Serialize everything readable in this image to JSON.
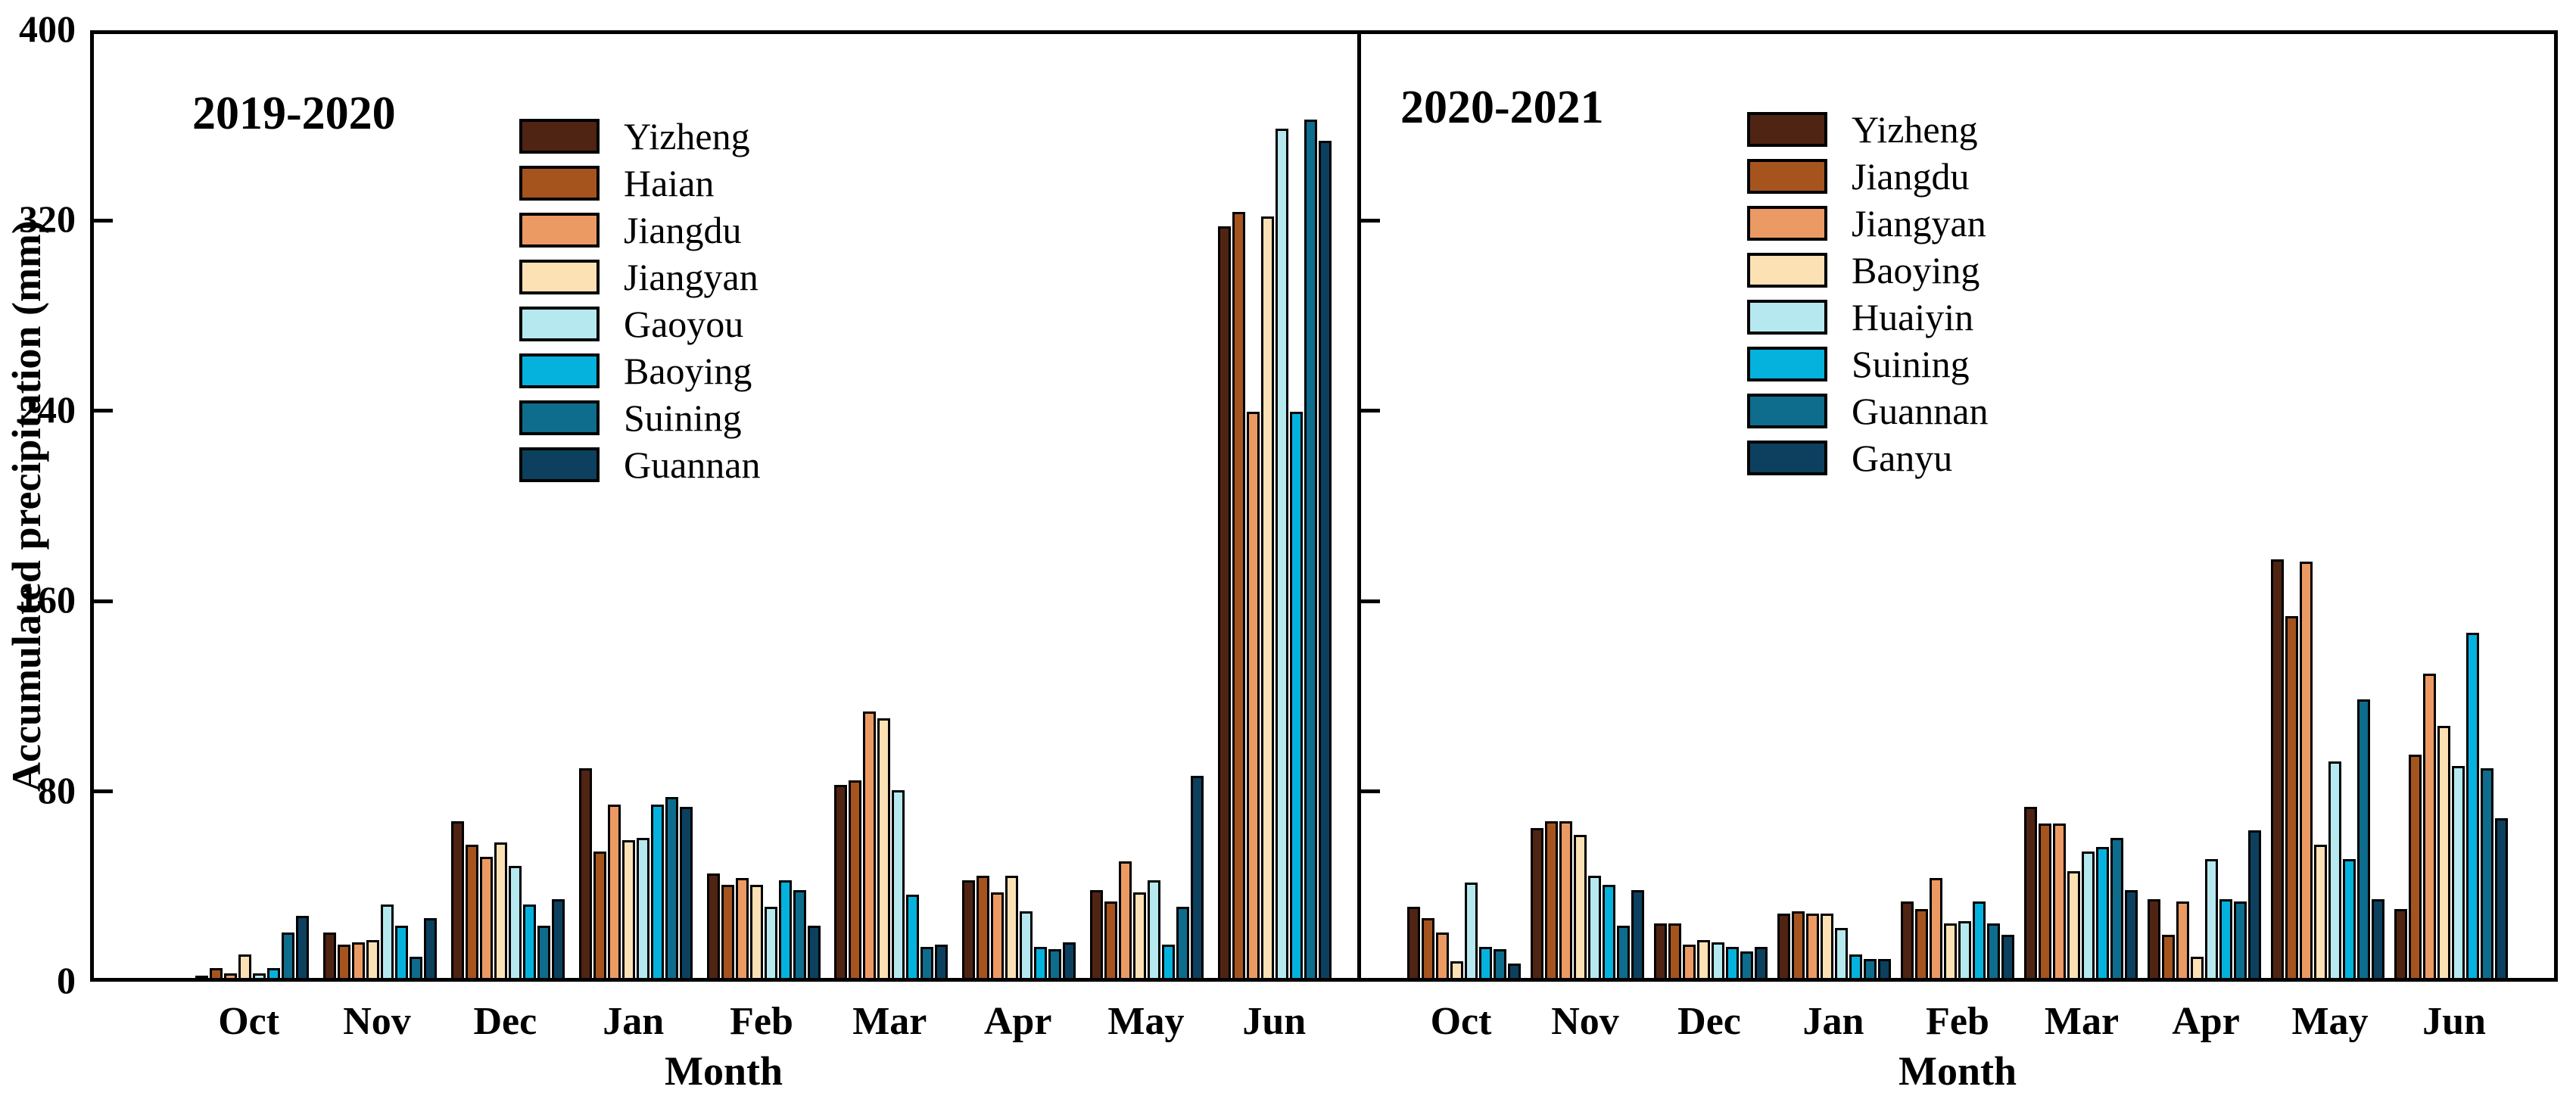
{
  "figure": {
    "y_axis_title": "Accumulated precipitation (mm)",
    "y_ticks": [
      0,
      80,
      160,
      240,
      320,
      400
    ],
    "y_max": 400,
    "bar_edge_color": "#000000",
    "background_color": "#ffffff"
  },
  "chart_data": [
    {
      "type": "bar",
      "panel": "left",
      "title": "2019-2020",
      "xlabel": "Month",
      "ylabel": "Accumulated precipitation (mm)",
      "ylim": [
        0,
        400
      ],
      "grid": false,
      "legend_position": "upper-left-inside",
      "categories": [
        "Oct",
        "Nov",
        "Dec",
        "Jan",
        "Feb",
        "Mar",
        "Apr",
        "May",
        "Jun"
      ],
      "series": [
        {
          "name": "Yizheng",
          "color": "#4f2413",
          "values": [
            1,
            19,
            66,
            88,
            44,
            81,
            41,
            37,
            316
          ]
        },
        {
          "name": "Haian",
          "color": "#a5541e",
          "values": [
            4,
            14,
            56,
            53,
            39,
            83,
            43,
            32,
            322
          ]
        },
        {
          "name": "Jiangdu",
          "color": "#ec9a63",
          "values": [
            2,
            15,
            51,
            73,
            42,
            112,
            36,
            49,
            238
          ]
        },
        {
          "name": "Jiangyan",
          "color": "#fce1b5",
          "values": [
            10,
            16,
            57,
            58,
            39,
            109,
            43,
            36,
            320
          ]
        },
        {
          "name": "Gaoyou",
          "color": "#b5e9ef",
          "values": [
            2,
            31,
            47,
            59,
            30,
            79,
            28,
            41,
            357
          ]
        },
        {
          "name": "Baoying",
          "color": "#05b2dd",
          "values": [
            4,
            22,
            31,
            73,
            41,
            35,
            13,
            14,
            238
          ]
        },
        {
          "name": "Suining",
          "color": "#0e6c8c",
          "values": [
            19,
            9,
            22,
            76,
            37,
            13,
            12,
            30,
            361
          ]
        },
        {
          "name": "Guannan",
          "color": "#0c405e",
          "values": [
            26,
            25,
            33,
            72,
            22,
            14,
            15,
            85,
            352
          ]
        }
      ]
    },
    {
      "type": "bar",
      "panel": "right",
      "title": "2020-2021",
      "xlabel": "Month",
      "ylabel": "Accumulated precipitation (mm)",
      "ylim": [
        0,
        400
      ],
      "grid": false,
      "legend_position": "upper-left-inside",
      "categories": [
        "Oct",
        "Nov",
        "Dec",
        "Jan",
        "Feb",
        "Mar",
        "Apr",
        "May",
        "Jun"
      ],
      "series": [
        {
          "name": "Yizheng",
          "color": "#4f2413",
          "values": [
            30,
            63,
            23,
            27,
            32,
            72,
            33,
            176,
            29
          ]
        },
        {
          "name": "Jiangdu",
          "color": "#a5541e",
          "values": [
            25,
            66,
            23,
            28,
            29,
            65,
            18,
            152,
            94
          ]
        },
        {
          "name": "Jiangyan",
          "color": "#ec9a63",
          "values": [
            19,
            66,
            14,
            27,
            42,
            65,
            32,
            175,
            128
          ]
        },
        {
          "name": "Baoying",
          "color": "#fce1b5",
          "values": [
            7,
            60,
            16,
            27,
            23,
            45,
            9,
            56,
            106
          ]
        },
        {
          "name": "Huaiyin",
          "color": "#b5e9ef",
          "values": [
            40,
            43,
            15,
            21,
            24,
            53,
            50,
            91,
            89
          ]
        },
        {
          "name": "Suining",
          "color": "#05b2dd",
          "values": [
            13,
            39,
            13,
            10,
            32,
            55,
            33,
            50,
            145
          ]
        },
        {
          "name": "Guannan",
          "color": "#0e6c8c",
          "values": [
            12,
            22,
            11,
            8,
            23,
            59,
            32,
            117,
            88
          ]
        },
        {
          "name": "Ganyu",
          "color": "#0c405e",
          "values": [
            6,
            37,
            13,
            8,
            18,
            37,
            62,
            33,
            67
          ]
        }
      ]
    }
  ]
}
